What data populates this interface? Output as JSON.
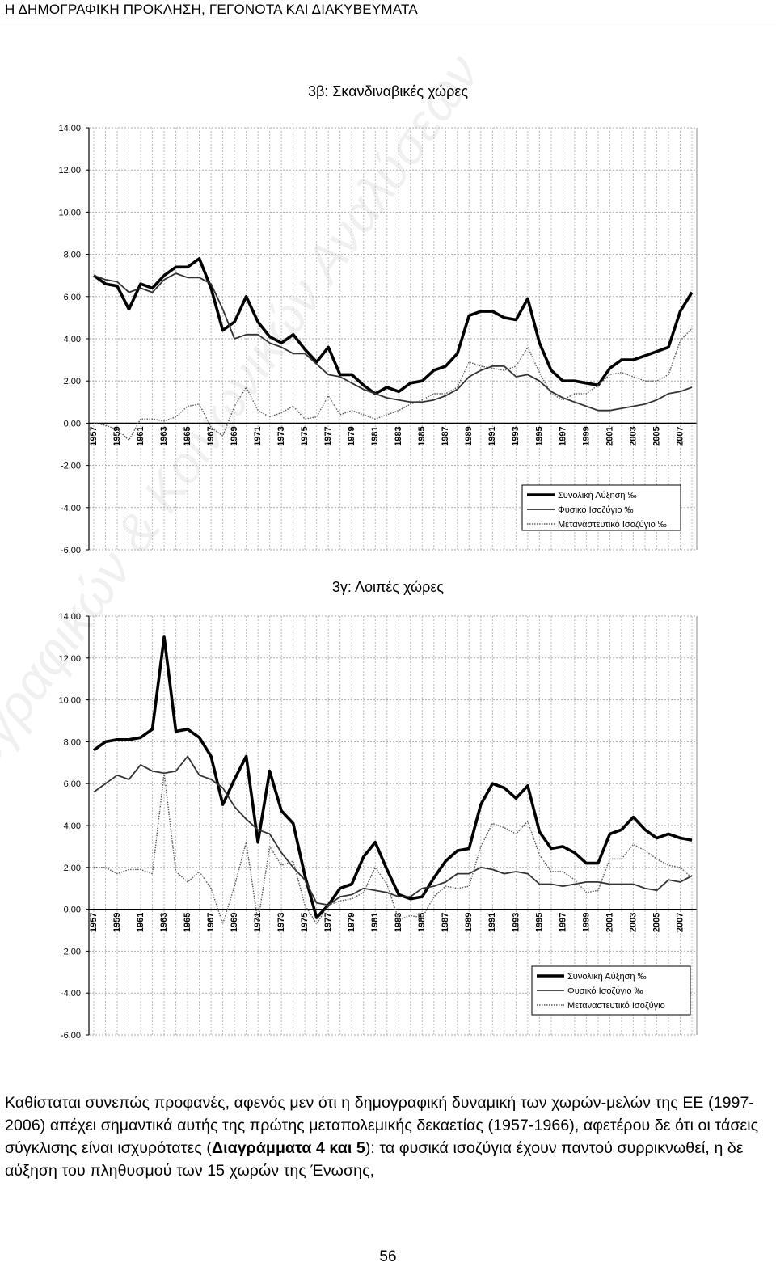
{
  "page": {
    "running_header": "Η ΔΗΜΟΓΡΑΦΙΚΗ ΠΡΟΚΛΗΣΗ, ΓΕΓΟΝΟΤΑ ΚΑΙ ΔΙΑΚΥΒΕΥΜΑΤΑ",
    "watermark": "Εργαστήριο Δημογραφικών & Κοινωνικών Αναλύσεων",
    "body_text": {
      "part1": "Καθίσταται συνεπώς προφανές, αφενός μεν ότι η δημογραφική δυναμική των χωρών-μελών της ΕΕ (1997-2006) απέχει σημαντικά αυτής της πρώτης μεταπολεμικής δεκαετίας (1957-1966), αφετέρου δε ότι οι τάσεις σύγκλισης είναι ισχυρότατες (",
      "bold": "Διαγράμματα 4 και 5",
      "part2": "): τα φυσικά ισοζύγια έχουν παντού συρρικνωθεί, η δε αύξηση του πληθυσμού των 15 χωρών της Ένωσης,"
    },
    "page_number": "56"
  },
  "chart_data": [
    {
      "type": "line",
      "title": "3β: Σκανδιναβικές χώρες",
      "ylim": [
        -6,
        14
      ],
      "y_ticks": [
        "14,00",
        "12,00",
        "10,00",
        "8,00",
        "6,00",
        "4,00",
        "2,00",
        "0,00",
        "-2,00",
        "-4,00",
        "-6,00"
      ],
      "x_start": 1957,
      "x_end": 2008,
      "x_tick_labels": [
        "1957",
        "1959",
        "1961",
        "1963",
        "1965",
        "1967",
        "1969",
        "1971",
        "1973",
        "1975",
        "1977",
        "1979",
        "1981",
        "1983",
        "1985",
        "1987",
        "1989",
        "1991",
        "1993",
        "1995",
        "1997",
        "1999",
        "2001",
        "2003",
        "2005",
        "2007"
      ],
      "grid": true,
      "legend_position": "bottom-right",
      "series": [
        {
          "name": "Συνολική Αύξηση ‰",
          "style": "thick",
          "values": [
            7.0,
            6.6,
            6.5,
            5.4,
            6.6,
            6.4,
            7.0,
            7.4,
            7.4,
            7.8,
            6.4,
            4.4,
            4.8,
            6.0,
            4.8,
            4.1,
            3.8,
            4.2,
            3.5,
            2.9,
            3.6,
            2.3,
            2.3,
            1.8,
            1.4,
            1.7,
            1.5,
            1.9,
            2.0,
            2.5,
            2.7,
            3.3,
            5.1,
            5.3,
            5.3,
            5.0,
            4.9,
            5.9,
            3.8,
            2.5,
            2.0,
            2.0,
            1.9,
            1.8,
            2.6,
            3.0,
            3.0,
            3.2,
            3.4,
            3.6,
            5.3,
            6.2
          ]
        },
        {
          "name": "Φυσικό Ισοζύγιο ‰",
          "style": "medium",
          "values": [
            7.0,
            6.8,
            6.7,
            6.2,
            6.4,
            6.2,
            6.8,
            7.1,
            6.9,
            6.9,
            6.6,
            5.4,
            4.0,
            4.2,
            4.2,
            3.8,
            3.6,
            3.3,
            3.3,
            2.8,
            2.3,
            2.2,
            1.9,
            1.6,
            1.4,
            1.2,
            1.1,
            1.0,
            1.0,
            1.1,
            1.3,
            1.6,
            2.2,
            2.5,
            2.7,
            2.7,
            2.2,
            2.3,
            2.0,
            1.5,
            1.2,
            1.0,
            0.8,
            0.6,
            0.6,
            0.7,
            0.8,
            0.9,
            1.1,
            1.4,
            1.5,
            1.7
          ]
        },
        {
          "name": "Μεταναστευτικό Ισοζύγιο ‰",
          "style": "dotted",
          "values": [
            0,
            -0.1,
            -0.3,
            -0.8,
            0.2,
            0.2,
            0.1,
            0.3,
            0.8,
            0.9,
            -0.2,
            -0.6,
            0.8,
            1.7,
            0.6,
            0.3,
            0.5,
            0.8,
            0.2,
            0.3,
            1.3,
            0.4,
            0.6,
            0.4,
            0.2,
            0.4,
            0.6,
            0.9,
            1.1,
            1.4,
            1.4,
            1.7,
            2.9,
            2.7,
            2.6,
            2.5,
            2.7,
            3.6,
            2.4,
            1.4,
            1.1,
            1.4,
            1.4,
            1.8,
            2.3,
            2.4,
            2.2,
            2.0,
            2.0,
            2.3,
            3.9,
            4.5
          ]
        }
      ]
    },
    {
      "type": "line",
      "title": "3γ: Λοιπές χώρες",
      "ylim": [
        -6,
        14
      ],
      "y_ticks": [
        "14,00",
        "12,00",
        "10,00",
        "8,00",
        "6,00",
        "4,00",
        "2,00",
        "0,00",
        "-2,00",
        "-4,00",
        "-6,00"
      ],
      "x_start": 1957,
      "x_end": 2008,
      "x_tick_labels": [
        "1957",
        "1959",
        "1961",
        "1963",
        "1965",
        "1967",
        "1969",
        "1971",
        "1973",
        "1975",
        "1977",
        "1979",
        "1981",
        "1983",
        "1985",
        "1987",
        "1989",
        "1991",
        "1993",
        "1995",
        "1997",
        "1999",
        "2001",
        "2003",
        "2005",
        "2007"
      ],
      "grid": true,
      "legend_position": "bottom-right",
      "series": [
        {
          "name": "Συνολική Αύξηση ‰",
          "style": "thick",
          "values": [
            7.6,
            8.0,
            8.1,
            8.1,
            8.2,
            8.6,
            13.0,
            8.5,
            8.6,
            8.2,
            7.3,
            5.0,
            6.2,
            7.3,
            3.2,
            6.6,
            4.7,
            4.1,
            1.6,
            -0.4,
            0.2,
            1.0,
            1.2,
            2.5,
            3.2,
            1.9,
            0.7,
            0.5,
            0.6,
            1.5,
            2.3,
            2.8,
            2.9,
            5.0,
            6.0,
            5.8,
            5.3,
            5.9,
            3.7,
            2.9,
            3.0,
            2.7,
            2.2,
            2.2,
            3.6,
            3.8,
            4.4,
            3.8,
            3.4,
            3.6,
            3.4,
            3.3
          ]
        },
        {
          "name": "Φυσικό Ισοζύγιο ‰",
          "style": "medium",
          "values": [
            5.6,
            6.0,
            6.4,
            6.2,
            6.9,
            6.6,
            6.5,
            6.6,
            7.3,
            6.4,
            6.2,
            5.8,
            4.9,
            4.3,
            3.8,
            3.6,
            2.7,
            2.0,
            1.4,
            0.3,
            0.2,
            0.6,
            0.7,
            1.0,
            0.9,
            0.8,
            0.6,
            0.6,
            1.0,
            1.1,
            1.3,
            1.7,
            1.7,
            2.0,
            1.9,
            1.7,
            1.8,
            1.7,
            1.2,
            1.2,
            1.1,
            1.2,
            1.3,
            1.3,
            1.2,
            1.2,
            1.2,
            1.0,
            0.9,
            1.4,
            1.3,
            1.6
          ]
        },
        {
          "name": "Μεταναστευτικό Ισοζύγιο",
          "style": "dotted",
          "values": [
            2.0,
            2.0,
            1.7,
            1.9,
            1.9,
            1.7,
            6.5,
            1.8,
            1.3,
            1.8,
            1.0,
            -0.7,
            1.1,
            3.2,
            -0.6,
            3.0,
            2.1,
            2.3,
            0.2,
            -0.7,
            0.2,
            0.4,
            0.5,
            0.8,
            2.0,
            1.2,
            -0.5,
            -0.3,
            -0.4,
            0.6,
            1.1,
            1.0,
            1.1,
            3.0,
            4.1,
            3.9,
            3.6,
            4.2,
            2.6,
            1.8,
            1.8,
            1.4,
            0.8,
            0.9,
            2.4,
            2.4,
            3.1,
            2.8,
            2.4,
            2.1,
            2.0,
            1.5
          ]
        }
      ]
    }
  ]
}
